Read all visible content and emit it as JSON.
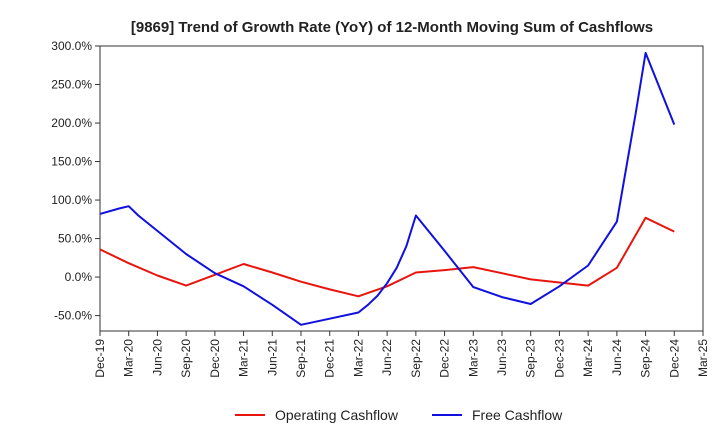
{
  "chart_data": {
    "type": "line",
    "title": "[9869]  Trend of Growth Rate (YoY) of 12-Month Moving Sum of Cashflows",
    "xlabel": "",
    "ylabel": "",
    "ylim": [
      -70,
      300
    ],
    "y_ticks": [
      -50,
      0,
      50,
      100,
      150,
      200,
      250,
      300
    ],
    "y_tick_labels": [
      "-50.0%",
      "0.0%",
      "50.0%",
      "100.0%",
      "150.0%",
      "200.0%",
      "250.0%",
      "300.0%"
    ],
    "x_tick_labels": [
      "Dec-19",
      "Mar-20",
      "Jun-20",
      "Sep-20",
      "Dec-20",
      "Mar-21",
      "Jun-21",
      "Sep-21",
      "Dec-21",
      "Mar-22",
      "Jun-22",
      "Sep-22",
      "Dec-22",
      "Mar-23",
      "Jun-23",
      "Sep-23",
      "Dec-23",
      "Mar-24",
      "Jun-24",
      "Sep-24",
      "Dec-24",
      "Mar-25"
    ],
    "grid": true,
    "legend_position": "bottom",
    "series": [
      {
        "name": "Operating Cashflow",
        "color": "#e8150e",
        "points": [
          [
            "Dec-19",
            36
          ],
          [
            "Mar-20",
            18
          ],
          [
            "Jun-20",
            2
          ],
          [
            "Sep-20",
            -11
          ],
          [
            "Dec-20",
            3
          ],
          [
            "Mar-21",
            17
          ],
          [
            "Jun-21",
            6
          ],
          [
            "Sep-21",
            -6
          ],
          [
            "Dec-21",
            -16
          ],
          [
            "Mar-22",
            -25
          ],
          [
            "Jun-22",
            -12
          ],
          [
            "Sep-22",
            6
          ],
          [
            "Dec-22",
            9
          ],
          [
            "Mar-23",
            13
          ],
          [
            "Jun-23",
            5
          ],
          [
            "Sep-23",
            -3
          ],
          [
            "Dec-23",
            -7
          ],
          [
            "Mar-24",
            -11
          ],
          [
            "Jun-24",
            12
          ],
          [
            "Sep-24",
            77
          ],
          [
            "Dec-24",
            59
          ]
        ]
      },
      {
        "name": "Free Cashflow",
        "color": "#1010e0",
        "points": [
          [
            "Dec-19",
            82
          ],
          [
            "Feb-20",
            89
          ],
          [
            "Mar-20",
            92
          ],
          [
            "Apr-20",
            80
          ],
          [
            "Jun-20",
            60
          ],
          [
            "Sep-20",
            30
          ],
          [
            "Dec-20",
            5
          ],
          [
            "Mar-21",
            -12
          ],
          [
            "Jun-21",
            -36
          ],
          [
            "Sep-21",
            -62
          ],
          [
            "Dec-21",
            -54
          ],
          [
            "Mar-22",
            -46
          ],
          [
            "Apr-22",
            -36
          ],
          [
            "May-22",
            -24
          ],
          [
            "Jun-22",
            -8
          ],
          [
            "Jul-22",
            12
          ],
          [
            "Aug-22",
            40
          ],
          [
            "Sep-22",
            80
          ],
          [
            "Dec-22",
            34
          ],
          [
            "Mar-23",
            -13
          ],
          [
            "Jun-23",
            -26
          ],
          [
            "Sep-23",
            -35
          ],
          [
            "Dec-23",
            -12
          ],
          [
            "Mar-24",
            15
          ],
          [
            "Jun-24",
            72
          ],
          [
            "Aug-24",
            215
          ],
          [
            "Sep-24",
            291
          ],
          [
            "Dec-24",
            198
          ]
        ]
      }
    ]
  }
}
